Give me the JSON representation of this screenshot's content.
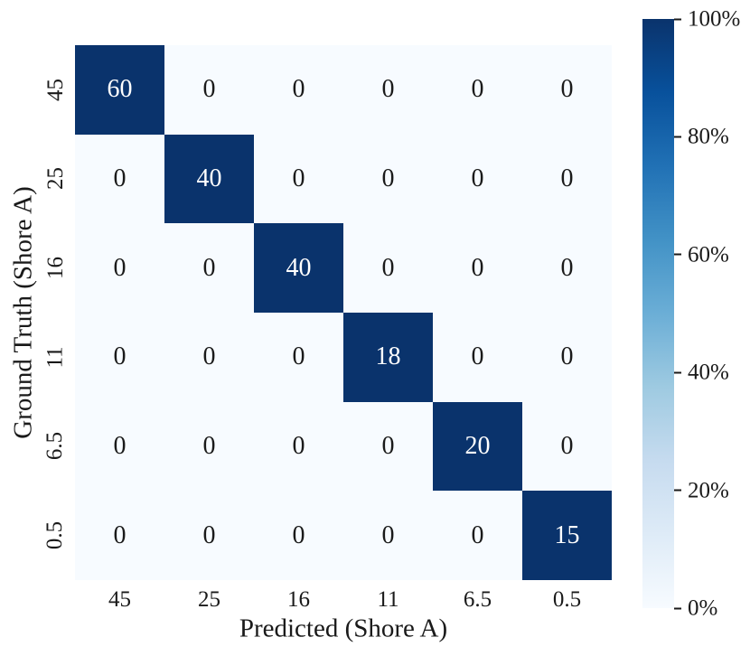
{
  "chart_data": {
    "type": "heatmap",
    "title": "",
    "xlabel": "Predicted (Shore A)",
    "ylabel": "Ground Truth (Shore A)",
    "x_categories": [
      "45",
      "25",
      "16",
      "11",
      "6.5",
      "0.5"
    ],
    "y_categories": [
      "45",
      "25",
      "16",
      "11",
      "6.5",
      "0.5"
    ],
    "matrix": [
      [
        60,
        0,
        0,
        0,
        0,
        0
      ],
      [
        0,
        40,
        0,
        0,
        0,
        0
      ],
      [
        0,
        0,
        40,
        0,
        0,
        0
      ],
      [
        0,
        0,
        0,
        18,
        0,
        0
      ],
      [
        0,
        0,
        0,
        0,
        20,
        0
      ],
      [
        0,
        0,
        0,
        0,
        0,
        15
      ]
    ],
    "percent_matrix": [
      [
        100,
        0,
        0,
        0,
        0,
        0
      ],
      [
        0,
        100,
        0,
        0,
        0,
        0
      ],
      [
        0,
        0,
        100,
        0,
        0,
        0
      ],
      [
        0,
        0,
        0,
        100,
        0,
        0
      ],
      [
        0,
        0,
        0,
        0,
        100,
        0
      ],
      [
        0,
        0,
        0,
        0,
        0,
        100
      ]
    ],
    "grid": false,
    "colors": {
      "cell_high": "#0a336c",
      "cell_low": "#f7fbff",
      "text_on_high": "#ffffff",
      "text_on_low": "#1a1a1a"
    },
    "colorbar": {
      "position": "right",
      "tick_labels": [
        "100%",
        "80%",
        "60%",
        "40%",
        "20%",
        "0%"
      ],
      "range": [
        0,
        100
      ],
      "gradient_stops_top_to_bottom": [
        "#0a336c",
        "#08519c",
        "#2171b5",
        "#4292c6",
        "#6baed6",
        "#9ecae1",
        "#c6dbef",
        "#deebf7",
        "#f7fbff"
      ]
    }
  }
}
